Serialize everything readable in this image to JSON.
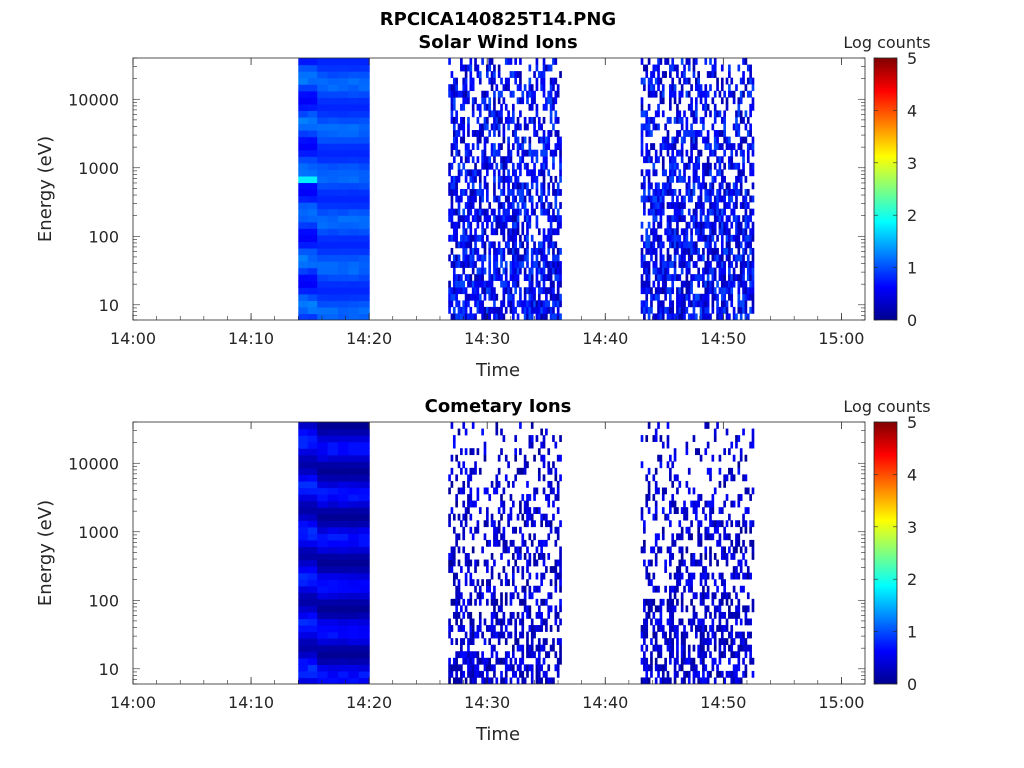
{
  "figure": {
    "title": "RPCICA140825T14.PNG",
    "colormap": "jet",
    "background": "#ffffff"
  },
  "chart_data": [
    {
      "type": "heatmap",
      "title": "Solar Wind Ions",
      "xlabel": "Time",
      "ylabel": "Energy (eV)",
      "x_scale": "time",
      "y_scale": "log",
      "xlim": [
        "14:00",
        "15:02"
      ],
      "ylim": [
        6,
        40000
      ],
      "xticks": [
        "14:00",
        "14:10",
        "14:20",
        "14:30",
        "14:40",
        "14:50",
        "15:00"
      ],
      "yticks": [
        10,
        100,
        1000,
        10000
      ],
      "ytick_labels": [
        "10",
        "100",
        "1000",
        "10000"
      ],
      "colorbar": {
        "label": "Log counts",
        "range": [
          0,
          5
        ],
        "ticks": [
          "0",
          "1",
          "2",
          "3",
          "4",
          "5"
        ]
      },
      "regions": [
        {
          "start": "14:14",
          "end": "14:15.6",
          "description": "dense",
          "level_range": [
            0.6,
            1.3
          ],
          "peak": {
            "energy": 750,
            "level": 1.8
          }
        },
        {
          "start": "14:15.6",
          "end": "14:20",
          "description": "dense",
          "level_range": [
            0.8,
            1.2
          ]
        },
        {
          "start": "14:26.7",
          "end": "14:36.3",
          "description": "sparse",
          "level_range": [
            0.2,
            1.0
          ]
        },
        {
          "start": "14:43",
          "end": "14:52.5",
          "description": "sparse",
          "level_range": [
            0.2,
            1.0
          ]
        }
      ]
    },
    {
      "type": "heatmap",
      "title": "Cometary Ions",
      "xlabel": "Time",
      "ylabel": "Energy (eV)",
      "x_scale": "time",
      "y_scale": "log",
      "xlim": [
        "14:00",
        "15:02"
      ],
      "ylim": [
        6,
        40000
      ],
      "xticks": [
        "14:00",
        "14:10",
        "14:20",
        "14:30",
        "14:40",
        "14:50",
        "15:00"
      ],
      "yticks": [
        10,
        100,
        1000,
        10000
      ],
      "ytick_labels": [
        "10",
        "100",
        "1000",
        "10000"
      ],
      "colorbar": {
        "label": "Log counts",
        "range": [
          0,
          5
        ],
        "ticks": [
          "0",
          "1",
          "2",
          "3",
          "4",
          "5"
        ]
      },
      "regions": [
        {
          "start": "14:14",
          "end": "14:15.6",
          "description": "dense",
          "level_range": [
            0.2,
            0.9
          ]
        },
        {
          "start": "14:15.6",
          "end": "14:20",
          "description": "dense",
          "level_range": [
            0.1,
            0.8
          ]
        },
        {
          "start": "14:26.7",
          "end": "14:36.3",
          "description": "sparse",
          "level_range": [
            0.1,
            0.7
          ]
        },
        {
          "start": "14:43",
          "end": "14:52.5",
          "description": "sparse",
          "level_range": [
            0.1,
            0.7
          ]
        }
      ]
    }
  ]
}
